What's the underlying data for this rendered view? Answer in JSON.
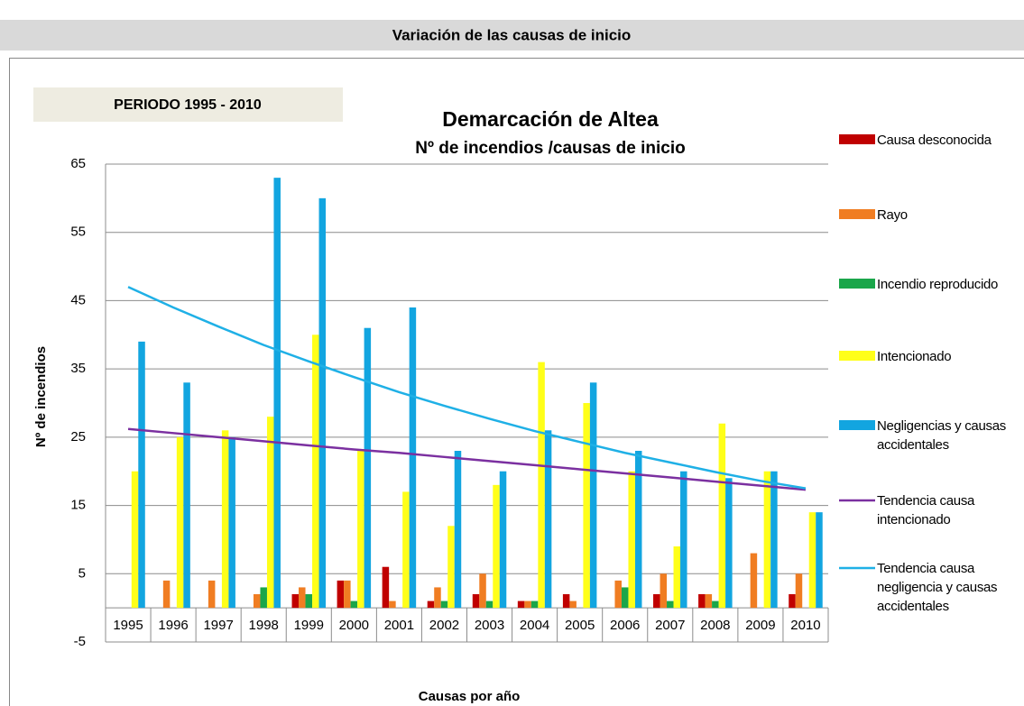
{
  "header": {
    "title": "Variación de las causas de inicio"
  },
  "chart_data": {
    "type": "bar",
    "period": "PERIODO 1995 - 2010",
    "title": "Demarcación de Altea",
    "subtitle": "Nº de incendios /causas de inicio",
    "x_label": "Causas por año",
    "y_label": "Nº de incendios",
    "categories": [
      "1995",
      "1996",
      "1997",
      "1998",
      "1999",
      "2000",
      "2001",
      "2002",
      "2003",
      "2004",
      "2005",
      "2006",
      "2007",
      "2008",
      "2009",
      "2010"
    ],
    "ylim": [
      -5,
      65
    ],
    "yticks": [
      -5,
      5,
      15,
      25,
      35,
      45,
      55,
      65
    ],
    "grid": true,
    "legend": "right",
    "series": [
      {
        "name": "Causa desconocida",
        "color": "#c00000",
        "values": [
          0,
          0,
          0,
          0,
          2,
          4,
          6,
          1,
          2,
          1,
          2,
          0,
          2,
          2,
          0,
          2
        ]
      },
      {
        "name": "Rayo",
        "color": "#f07d22",
        "values": [
          0,
          4,
          4,
          2,
          3,
          4,
          1,
          3,
          5,
          1,
          1,
          4,
          5,
          2,
          8,
          5
        ]
      },
      {
        "name": "Incendio reproducido",
        "color": "#1aa64a",
        "values": [
          0,
          0,
          0,
          3,
          2,
          1,
          0,
          1,
          1,
          1,
          0,
          3,
          1,
          1,
          0,
          0
        ]
      },
      {
        "name": "Intencionado",
        "color": "#ffff19",
        "values": [
          20,
          25,
          26,
          28,
          40,
          23,
          17,
          12,
          18,
          36,
          30,
          20,
          9,
          27,
          20,
          14
        ]
      },
      {
        "name": "Negligencias y causas accidentales",
        "color": "#12a5e0",
        "values": [
          39,
          33,
          25,
          63,
          60,
          41,
          44,
          23,
          20,
          26,
          33,
          23,
          20,
          19,
          20,
          14
        ]
      },
      {
        "name": "Tendencia causa intencionado",
        "type": "line",
        "color": "#7b30a0",
        "values": [
          26.2,
          25.6,
          25.0,
          24.4,
          23.8,
          23.2,
          22.7,
          22.1,
          21.5,
          20.9,
          20.3,
          19.7,
          19.1,
          18.5,
          17.9,
          17.3
        ]
      },
      {
        "name": "Tendencia causa negligencia y causas accidentales",
        "type": "line",
        "color": "#1fb0e6",
        "values": [
          47,
          44.0,
          41.2,
          38.5,
          36.1,
          33.8,
          31.6,
          29.6,
          27.7,
          25.9,
          24.3,
          22.7,
          21.3,
          19.9,
          18.6,
          17.5
        ]
      }
    ]
  }
}
